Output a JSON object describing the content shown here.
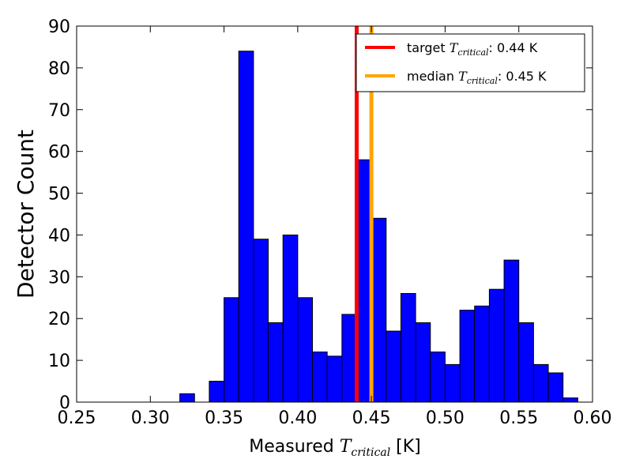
{
  "chart_data": {
    "type": "bar",
    "xlabel": {
      "prefix": "Measured ",
      "symbol": "T",
      "subscript": "critical",
      "suffix": " [K]"
    },
    "ylabel": "Detector Count",
    "xlim": [
      0.25,
      0.6
    ],
    "ylim": [
      0,
      90
    ],
    "x_ticks": [
      "0.25",
      "0.30",
      "0.35",
      "0.40",
      "0.45",
      "0.50",
      "0.55",
      "0.60"
    ],
    "y_ticks": [
      "0",
      "10",
      "20",
      "30",
      "40",
      "50",
      "60",
      "70",
      "80",
      "90"
    ],
    "bin_width": 0.01,
    "bins": [
      {
        "x0": 0.32,
        "count": 2
      },
      {
        "x0": 0.34,
        "count": 5
      },
      {
        "x0": 0.35,
        "count": 25
      },
      {
        "x0": 0.36,
        "count": 84
      },
      {
        "x0": 0.37,
        "count": 39
      },
      {
        "x0": 0.38,
        "count": 19
      },
      {
        "x0": 0.39,
        "count": 40
      },
      {
        "x0": 0.4,
        "count": 25
      },
      {
        "x0": 0.41,
        "count": 12
      },
      {
        "x0": 0.42,
        "count": 11
      },
      {
        "x0": 0.43,
        "count": 21
      },
      {
        "x0": 0.44,
        "count": 58
      },
      {
        "x0": 0.45,
        "count": 44
      },
      {
        "x0": 0.46,
        "count": 17
      },
      {
        "x0": 0.47,
        "count": 26
      },
      {
        "x0": 0.48,
        "count": 19
      },
      {
        "x0": 0.49,
        "count": 12
      },
      {
        "x0": 0.5,
        "count": 9
      },
      {
        "x0": 0.51,
        "count": 22
      },
      {
        "x0": 0.52,
        "count": 23
      },
      {
        "x0": 0.53,
        "count": 27
      },
      {
        "x0": 0.54,
        "count": 34
      },
      {
        "x0": 0.55,
        "count": 19
      },
      {
        "x0": 0.56,
        "count": 9
      },
      {
        "x0": 0.57,
        "count": 7
      },
      {
        "x0": 0.58,
        "count": 1
      }
    ],
    "bar_color": "#0000ff",
    "vlines": [
      {
        "x": 0.44,
        "color": "#ff0000",
        "label_prefix": "target ",
        "label_symbol": "T",
        "label_subscript": "critical",
        "label_suffix": ": 0.44 K"
      },
      {
        "x": 0.45,
        "color": "#ffa500",
        "label_prefix": "median ",
        "label_symbol": "T",
        "label_subscript": "critical",
        "label_suffix": ": 0.45 K"
      }
    ],
    "legend_position": "top-right",
    "grid": false
  }
}
